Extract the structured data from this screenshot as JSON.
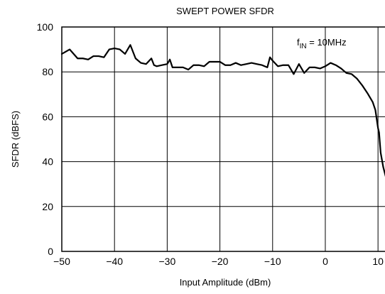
{
  "chart_data": {
    "type": "line",
    "title": "SWEPT POWER SFDR",
    "xlabel": "Input Amplitude (dBm)",
    "ylabel": "SFDR (dBFS)",
    "xlim": [
      -50,
      12
    ],
    "ylim": [
      0,
      100
    ],
    "xticks": [
      -50,
      -40,
      -30,
      -20,
      -10,
      0,
      10
    ],
    "xtick_labels": [
      "−50",
      "−40",
      "−30",
      "−20",
      "−10",
      "0",
      "10"
    ],
    "yticks": [
      0,
      20,
      40,
      60,
      80,
      100
    ],
    "ytick_labels": [
      "0",
      "20",
      "40",
      "60",
      "80",
      "100"
    ],
    "grid": true,
    "annotation": {
      "prefix": "f",
      "subscript": "IN",
      "suffix": " = 10MHz"
    },
    "series": [
      {
        "x": [
          -50,
          -48.5,
          -47,
          -46,
          -45,
          -44,
          -43,
          -42,
          -41,
          -40,
          -39,
          -38,
          -37.5,
          -37,
          -36,
          -35,
          -34,
          -33,
          -32.5,
          -32,
          -31,
          -30,
          -29.5,
          -29,
          -28,
          -27,
          -26,
          -25,
          -24,
          -23,
          -22,
          -21,
          -20,
          -19,
          -18,
          -17,
          -16,
          -15,
          -14,
          -13,
          -12,
          -11,
          -10.5,
          -10,
          -9,
          -8,
          -7,
          -6,
          -5,
          -4,
          -3,
          -2,
          -1,
          0,
          1,
          2,
          3,
          4,
          5,
          6,
          7,
          8,
          9,
          9.5,
          10,
          10.2,
          10.5,
          11,
          11.5,
          12
        ],
        "y": [
          88,
          90,
          86,
          86,
          85.5,
          87,
          87,
          86.5,
          90,
          90.5,
          90,
          88,
          90,
          92,
          86,
          84,
          83.5,
          86,
          83,
          82.5,
          83,
          83.5,
          85.5,
          82,
          82,
          82,
          81,
          83,
          83,
          82.5,
          84.5,
          84.5,
          84.5,
          83,
          83,
          84,
          83,
          83.5,
          84,
          83.5,
          83,
          82,
          86.5,
          85,
          82.5,
          83,
          83,
          79,
          83.5,
          79.5,
          82,
          82,
          81.5,
          82.5,
          84,
          83,
          81.5,
          79.5,
          79,
          77,
          74,
          70.5,
          66.5,
          63,
          55,
          53,
          44,
          37.5,
          33,
          30
        ]
      }
    ]
  }
}
